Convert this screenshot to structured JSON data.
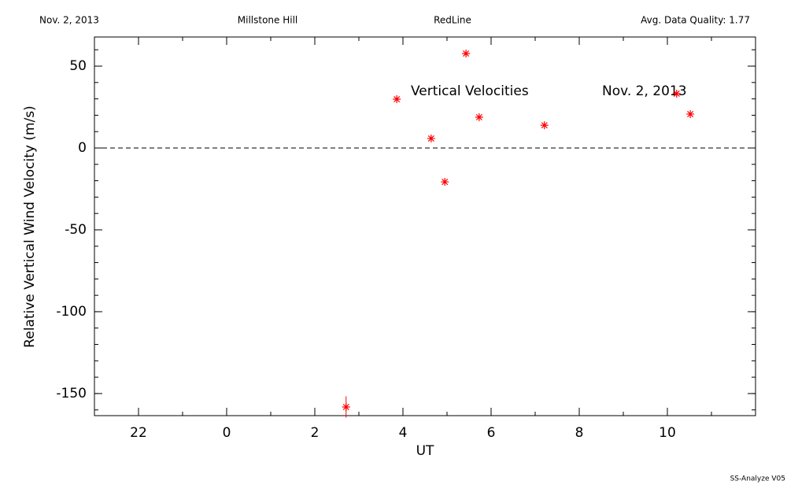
{
  "chart_data": {
    "type": "scatter",
    "header": [
      "Nov. 2, 2013",
      "Millstone Hill",
      "RedLine",
      "Avg. Data Quality: 1.77"
    ],
    "footer": "SS-Analyze V05",
    "xlabel": "UT",
    "ylabel": "Relative Vertical Wind Velocity (m/s)",
    "annotations": [
      "Vertical Velocities",
      "Nov. 2, 2013"
    ],
    "xlim": [
      -3,
      12
    ],
    "ylim": [
      -163.5,
      67.8
    ],
    "xticks": [
      {
        "value": -2,
        "label": "22"
      },
      0,
      2,
      4,
      6,
      8,
      10
    ],
    "yticks": [
      -150,
      -100,
      -50,
      0,
      50
    ],
    "x_minor_step": 1,
    "y_minor_step": 10,
    "reference_line": 0,
    "series": [
      {
        "name": "Vertical Velocities",
        "color": "#ff0000",
        "x": [
          2.71,
          3.86,
          4.64,
          4.95,
          5.43,
          5.73,
          7.21,
          10.21,
          10.52
        ],
        "values": [
          -158.2,
          29.8,
          5.8,
          -20.7,
          57.7,
          18.8,
          13.9,
          33.2,
          20.7
        ],
        "errors": [
          6.5,
          1,
          1,
          1,
          1,
          1,
          1,
          1,
          1
        ]
      }
    ]
  }
}
